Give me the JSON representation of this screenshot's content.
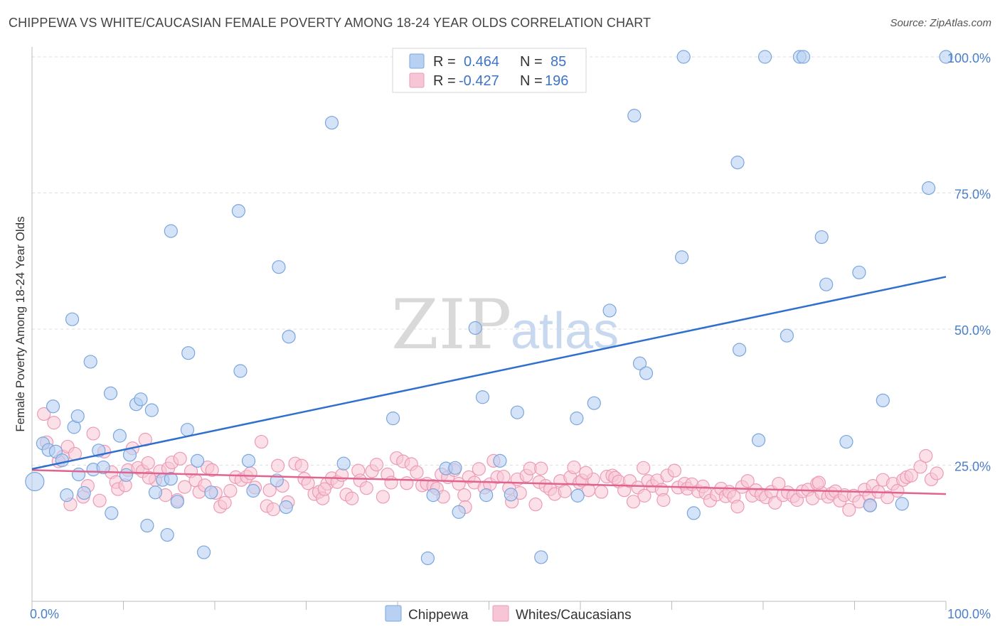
{
  "title": "CHIPPEWA VS WHITE/CAUCASIAN FEMALE POVERTY AMONG 18-24 YEAR OLDS CORRELATION CHART",
  "source": "Source: ZipAtlas.com",
  "watermark": {
    "zip": "ZIP",
    "atlas": "atlas"
  },
  "colors": {
    "chippewa_fill": "#b8d1f3",
    "chippewa_stroke": "#7aa6dc",
    "chippewa_line": "#2f6fce",
    "white_fill": "#f7c6d6",
    "white_stroke": "#ec9bb6",
    "white_line": "#e0648f",
    "value_text": "#3c74c7",
    "grid": "#dddddd"
  },
  "legend": {
    "rows": [
      {
        "r_label": "R =",
        "r_value": "0.464",
        "n_label": "N =",
        "n_value": "85"
      },
      {
        "r_label": "R =",
        "r_value": "-0.427",
        "n_label": "N =",
        "n_value": "196"
      }
    ]
  },
  "chart_data": {
    "type": "scatter",
    "title": "CHIPPEWA VS WHITE/CAUCASIAN FEMALE POVERTY AMONG 18-24 YEAR OLDS CORRELATION CHART",
    "xlabel": "",
    "ylabel": "Female Poverty Among 18-24 Year Olds",
    "xlim": [
      0,
      100
    ],
    "ylim": [
      0,
      100
    ],
    "x_tick_labels": [
      "0.0%",
      "100.0%"
    ],
    "y_ticks": [
      25,
      50,
      75,
      100
    ],
    "y_tick_labels": [
      "25.0%",
      "50.0%",
      "75.0%",
      "100.0%"
    ],
    "grid": "horizontal dashed",
    "legend_position": "top-center",
    "series": [
      {
        "name": "Chippewa",
        "trend": {
          "x": [
            0,
            100
          ],
          "y": [
            24.3,
            59.6
          ]
        },
        "points": [
          [
            0.3,
            22
          ],
          [
            1.2,
            29
          ],
          [
            1.8,
            27.8
          ],
          [
            2.3,
            35.8
          ],
          [
            2.6,
            27.5
          ],
          [
            3.3,
            25.9
          ],
          [
            3.8,
            19.5
          ],
          [
            4.4,
            51.8
          ],
          [
            4.6,
            32
          ],
          [
            5.1,
            23.3
          ],
          [
            5.7,
            19.9
          ],
          [
            6.4,
            44
          ],
          [
            6.7,
            24.2
          ],
          [
            7.3,
            27.7
          ],
          [
            7.8,
            24.6
          ],
          [
            8.6,
            38.2
          ],
          [
            8.7,
            16.2
          ],
          [
            9.6,
            30.4
          ],
          [
            10.3,
            23.2
          ],
          [
            10.7,
            26.9
          ],
          [
            11.4,
            36.2
          ],
          [
            11.9,
            37.1
          ],
          [
            12.6,
            13.9
          ],
          [
            13.1,
            35.1
          ],
          [
            13.5,
            20
          ],
          [
            14.3,
            22.3
          ],
          [
            14.8,
            12.2
          ],
          [
            15.2,
            68
          ],
          [
            15.9,
            18.3
          ],
          [
            17,
            31.5
          ],
          [
            17.1,
            45.6
          ],
          [
            18.1,
            25.8
          ],
          [
            18.8,
            9
          ],
          [
            19.6,
            20
          ],
          [
            22.6,
            71.7
          ],
          [
            22.8,
            42.3
          ],
          [
            23.7,
            25.8
          ],
          [
            24.2,
            20.3
          ],
          [
            27,
            61.4
          ],
          [
            27.8,
            17.3
          ],
          [
            28.1,
            48.6
          ],
          [
            32.8,
            87.9
          ],
          [
            34.1,
            25.3
          ],
          [
            39.5,
            33.6
          ],
          [
            43.3,
            7.9
          ],
          [
            43.9,
            19.5
          ],
          [
            45.3,
            24.4
          ],
          [
            46.3,
            24.5
          ],
          [
            46.7,
            16.4
          ],
          [
            48.5,
            50.2
          ],
          [
            49.3,
            37.5
          ],
          [
            49.7,
            19.5
          ],
          [
            51.2,
            25.8
          ],
          [
            52.4,
            19.6
          ],
          [
            53.1,
            34.7
          ],
          [
            55.7,
            8.1
          ],
          [
            59.6,
            33.6
          ],
          [
            59.7,
            19.4
          ],
          [
            61.5,
            36.4
          ],
          [
            63.2,
            53.4
          ],
          [
            65.9,
            89.2
          ],
          [
            66.5,
            43.7
          ],
          [
            67.2,
            41.9
          ],
          [
            71.1,
            63.2
          ],
          [
            71.3,
            100
          ],
          [
            72.4,
            16.2
          ],
          [
            77.2,
            80.6
          ],
          [
            77.4,
            46.2
          ],
          [
            79.5,
            29.6
          ],
          [
            80.2,
            100
          ],
          [
            82.6,
            48.8
          ],
          [
            84,
            100
          ],
          [
            84.4,
            100
          ],
          [
            86.4,
            66.9
          ],
          [
            86.9,
            58.2
          ],
          [
            89.1,
            29.3
          ],
          [
            90.5,
            60.4
          ],
          [
            91.7,
            17.6
          ],
          [
            93.1,
            36.9
          ],
          [
            95.2,
            17.9
          ],
          [
            98.1,
            75.9
          ],
          [
            100,
            100
          ],
          [
            26.8,
            22.2
          ],
          [
            15.2,
            22.5
          ],
          [
            5.0,
            34.0
          ]
        ]
      },
      {
        "name": "Whites/Caucasians",
        "trend": {
          "x": [
            0,
            100
          ],
          "y": [
            24.1,
            19.7
          ]
        },
        "points": [
          [
            1.3,
            34.4
          ],
          [
            1.6,
            29.2
          ],
          [
            2.4,
            32.8
          ],
          [
            3.4,
            26.6
          ],
          [
            3.9,
            28.4
          ],
          [
            4.2,
            17.8
          ],
          [
            4.7,
            27.1
          ],
          [
            5.6,
            19.2
          ],
          [
            6.1,
            21.2
          ],
          [
            6.7,
            30.8
          ],
          [
            7.4,
            18.5
          ],
          [
            7.9,
            27.5
          ],
          [
            8.7,
            23.7
          ],
          [
            9.2,
            21.9
          ],
          [
            9.4,
            20.6
          ],
          [
            10.2,
            21.3
          ],
          [
            10.5,
            24.1
          ],
          [
            11,
            28.1
          ],
          [
            11.6,
            24.5
          ],
          [
            12.1,
            23.9
          ],
          [
            12.4,
            29.7
          ],
          [
            12.7,
            25.4
          ],
          [
            13.5,
            22.3
          ],
          [
            14,
            23.9
          ],
          [
            14.6,
            19.5
          ],
          [
            14.9,
            24.4
          ],
          [
            15.3,
            25.5
          ],
          [
            15.9,
            18.6
          ],
          [
            16.2,
            26.2
          ],
          [
            16.7,
            21
          ],
          [
            17.4,
            23.9
          ],
          [
            17.9,
            22.2
          ],
          [
            18.3,
            20.1
          ],
          [
            18.9,
            21.3
          ],
          [
            19.2,
            24.6
          ],
          [
            19.7,
            24.1
          ],
          [
            20.1,
            19.9
          ],
          [
            20.6,
            17.4
          ],
          [
            21.1,
            18.1
          ],
          [
            21.7,
            20.3
          ],
          [
            22.3,
            22.8
          ],
          [
            22.9,
            22.3
          ],
          [
            23.5,
            22.9
          ],
          [
            23.9,
            23.5
          ],
          [
            24.4,
            20.9
          ],
          [
            25.1,
            29.3
          ],
          [
            25.7,
            17.5
          ],
          [
            26,
            20.4
          ],
          [
            26.4,
            16.9
          ],
          [
            26.9,
            24.9
          ],
          [
            27.4,
            21.2
          ],
          [
            28,
            18.2
          ],
          [
            28.8,
            25.3
          ],
          [
            29.5,
            24.9
          ],
          [
            29.8,
            22.5
          ],
          [
            30.2,
            21.7
          ],
          [
            30.9,
            19.7
          ],
          [
            31.4,
            20.1
          ],
          [
            31.8,
            18.9
          ],
          [
            32.3,
            21.6
          ],
          [
            32.8,
            22.6
          ],
          [
            33.4,
            21.9
          ],
          [
            33.9,
            23.2
          ],
          [
            34.4,
            19.6
          ],
          [
            35,
            18.9
          ],
          [
            35.7,
            24
          ],
          [
            35.9,
            22.2
          ],
          [
            36.6,
            20.8
          ],
          [
            37.2,
            23.9
          ],
          [
            37.7,
            25.1
          ],
          [
            38.4,
            19.2
          ],
          [
            38.9,
            23.3
          ],
          [
            39.3,
            21.8
          ],
          [
            39.9,
            26.3
          ],
          [
            40.6,
            25.7
          ],
          [
            41,
            21.7
          ],
          [
            41.5,
            25.2
          ],
          [
            42.1,
            23.7
          ],
          [
            42.7,
            21.3
          ],
          [
            43.2,
            21.6
          ],
          [
            43.9,
            21.2
          ],
          [
            44.3,
            20.7
          ],
          [
            44.8,
            23.3
          ],
          [
            45,
            19.2
          ],
          [
            45.5,
            22.8
          ],
          [
            46.2,
            24.1
          ],
          [
            46.7,
            21.6
          ],
          [
            47.3,
            19.5
          ],
          [
            47.8,
            22.8
          ],
          [
            48.4,
            21.8
          ],
          [
            48.9,
            24.3
          ],
          [
            49.5,
            20.9
          ],
          [
            50.1,
            21.5
          ],
          [
            50.5,
            25.8
          ],
          [
            50.9,
            22.8
          ],
          [
            51.6,
            22.9
          ],
          [
            52.2,
            20.8
          ],
          [
            52.5,
            18.3
          ],
          [
            53.1,
            22.4
          ],
          [
            53.4,
            19.9
          ],
          [
            54.1,
            23.1
          ],
          [
            54.5,
            24.4
          ],
          [
            55.1,
            17.8
          ],
          [
            55.5,
            21.9
          ],
          [
            56.2,
            21.2
          ],
          [
            56.7,
            20.6
          ],
          [
            57.2,
            19.7
          ],
          [
            57.8,
            22.1
          ],
          [
            58.3,
            20.2
          ],
          [
            58.9,
            22.8
          ],
          [
            59.3,
            24.6
          ],
          [
            59.9,
            21.8
          ],
          [
            60.2,
            22.2
          ],
          [
            60.9,
            20.4
          ],
          [
            61.4,
            22.4
          ],
          [
            62.3,
            20.1
          ],
          [
            62.9,
            22.9
          ],
          [
            63.5,
            23.1
          ],
          [
            63.8,
            22.7
          ],
          [
            64.2,
            22
          ],
          [
            64.8,
            20.4
          ],
          [
            65.4,
            22.1
          ],
          [
            65.8,
            18.3
          ],
          [
            66.3,
            20.9
          ],
          [
            67,
            19.4
          ],
          [
            67.4,
            22.1
          ],
          [
            67.9,
            21.2
          ],
          [
            68.4,
            22.2
          ],
          [
            68.9,
            20.5
          ],
          [
            69.5,
            23.1
          ],
          [
            70.3,
            24
          ],
          [
            70.7,
            20.9
          ],
          [
            71.4,
            21.6
          ],
          [
            71.7,
            20.7
          ],
          [
            72.2,
            21.5
          ],
          [
            72.9,
            20.2
          ],
          [
            73.4,
            21.1
          ],
          [
            73.7,
            19.9
          ],
          [
            74.2,
            18.5
          ],
          [
            74.9,
            19.6
          ],
          [
            75.4,
            20.7
          ],
          [
            75.9,
            19.3
          ],
          [
            76.3,
            20.1
          ],
          [
            76.8,
            19.2
          ],
          [
            77.2,
            17.4
          ],
          [
            77.7,
            21
          ],
          [
            78.3,
            22.1
          ],
          [
            78.8,
            19.4
          ],
          [
            79.2,
            20.4
          ],
          [
            79.8,
            19.6
          ],
          [
            80.3,
            19.1
          ],
          [
            80.9,
            20.1
          ],
          [
            81.3,
            18.1
          ],
          [
            81.7,
            21.6
          ],
          [
            82.2,
            19.5
          ],
          [
            82.7,
            20
          ],
          [
            83.3,
            19.3
          ],
          [
            83.7,
            18.6
          ],
          [
            84.3,
            20.2
          ],
          [
            84.9,
            20.5
          ],
          [
            85.4,
            18.9
          ],
          [
            85.9,
            21.6
          ],
          [
            86.4,
            19.9
          ],
          [
            87.1,
            19.2
          ],
          [
            87.5,
            19.8
          ],
          [
            87.9,
            20.2
          ],
          [
            88.4,
            18.5
          ],
          [
            88.9,
            19.5
          ],
          [
            89.4,
            16.8
          ],
          [
            89.9,
            19.4
          ],
          [
            90.5,
            18.3
          ],
          [
            91.1,
            20.5
          ],
          [
            91.6,
            19.4
          ],
          [
            92,
            21.2
          ],
          [
            92.6,
            20.1
          ],
          [
            93.1,
            22.3
          ],
          [
            93.6,
            19.1
          ],
          [
            94.2,
            21.6
          ],
          [
            94.7,
            20.3
          ],
          [
            95.3,
            22.3
          ],
          [
            95.7,
            22.8
          ],
          [
            96.2,
            23.1
          ],
          [
            97.2,
            24.7
          ],
          [
            97.8,
            26.7
          ],
          [
            98.4,
            22.4
          ],
          [
            99.0,
            23.5
          ],
          [
            32.0,
            20.6
          ],
          [
            47.4,
            17.3
          ],
          [
            66.9,
            24.5
          ],
          [
            86.1,
            21.8
          ],
          [
            12.8,
            22.7
          ],
          [
            2.9,
            25.7
          ],
          [
            60.6,
            23.6
          ],
          [
            91.7,
            17.7
          ],
          [
            55.7,
            24.4
          ],
          [
            69.1,
            18.6
          ]
        ]
      }
    ]
  },
  "bottom_legend": [
    {
      "label": "Chippewa"
    },
    {
      "label": "Whites/Caucasians"
    }
  ]
}
